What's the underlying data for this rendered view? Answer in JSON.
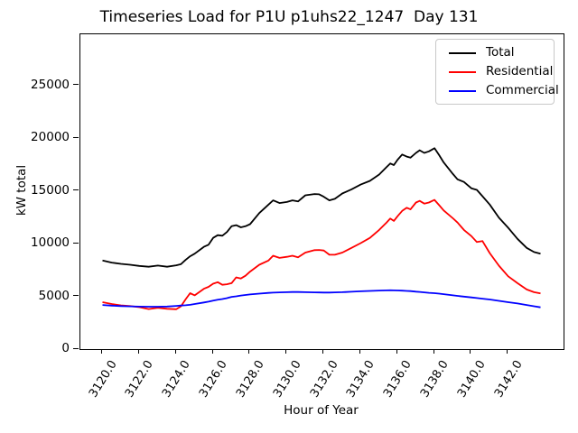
{
  "title": "Timeseries Load for P1U p1uhs22_1247  Day 131",
  "chart_data": {
    "type": "line",
    "title": "Timeseries Load for P1U p1uhs22_1247  Day 131",
    "xlabel": "Hour of Year",
    "ylabel": "kW total",
    "xlim": [
      3118.8,
      3145.0
    ],
    "ylim": [
      0,
      29850
    ],
    "grid": false,
    "legend_position": "upper right",
    "xticks": {
      "values": [
        3120,
        3122,
        3124,
        3126,
        3128,
        3130,
        3132,
        3134,
        3136,
        3138,
        3140,
        3142
      ],
      "labels": [
        "3120.0",
        "3122.0",
        "3124.0",
        "3126.0",
        "3128.0",
        "3130.0",
        "3132.0",
        "3134.0",
        "3136.0",
        "3138.0",
        "3140.0",
        "3142.0"
      ]
    },
    "yticks": {
      "values": [
        0,
        5000,
        10000,
        15000,
        20000,
        25000
      ],
      "labels": [
        "0",
        "5000",
        "10000",
        "15000",
        "20000",
        "25000"
      ]
    },
    "x": [
      3120,
      3120.5,
      3121,
      3121.5,
      3122,
      3122.5,
      3123,
      3123.5,
      3124,
      3124.25,
      3124.5,
      3124.75,
      3125,
      3125.5,
      3125.75,
      3126,
      3126.25,
      3126.5,
      3126.75,
      3127,
      3127.25,
      3127.5,
      3127.75,
      3128,
      3128.5,
      3129,
      3129.25,
      3129.6,
      3130,
      3130.3,
      3130.6,
      3131,
      3131.5,
      3131.75,
      3132,
      3132.3,
      3132.6,
      3133,
      3133.5,
      3134,
      3134.5,
      3135,
      3135.4,
      3135.6,
      3135.8,
      3136,
      3136.25,
      3136.5,
      3136.7,
      3137,
      3137.2,
      3137.45,
      3137.7,
      3138,
      3138.25,
      3138.5,
      3139,
      3139.25,
      3139.6,
      3140,
      3140.3,
      3140.6,
      3141,
      3141.5,
      3142,
      3142.5,
      3143,
      3143.4,
      3143.75
    ],
    "series": [
      {
        "name": "Total",
        "color": "#000000",
        "values": [
          8400,
          8200,
          8080,
          8000,
          7890,
          7810,
          7920,
          7810,
          7950,
          8050,
          8450,
          8800,
          9050,
          9700,
          9900,
          10550,
          10800,
          10750,
          11100,
          11650,
          11750,
          11550,
          11650,
          11850,
          12900,
          13700,
          14100,
          13850,
          13950,
          14100,
          14000,
          14580,
          14700,
          14680,
          14450,
          14100,
          14250,
          14750,
          15150,
          15600,
          15950,
          16550,
          17250,
          17600,
          17450,
          17950,
          18450,
          18250,
          18150,
          18600,
          18850,
          18600,
          18750,
          19050,
          18400,
          17700,
          16600,
          16100,
          15850,
          15250,
          15100,
          14500,
          13700,
          12450,
          11500,
          10450,
          9600,
          9200,
          9050
        ]
      },
      {
        "name": "Residential",
        "color": "#ff0000",
        "values": [
          4450,
          4280,
          4150,
          4080,
          3980,
          3800,
          3920,
          3820,
          3780,
          4050,
          4700,
          5300,
          5100,
          5720,
          5900,
          6200,
          6350,
          6100,
          6150,
          6250,
          6800,
          6700,
          6950,
          7350,
          8000,
          8400,
          8850,
          8650,
          8750,
          8850,
          8700,
          9150,
          9380,
          9400,
          9350,
          8950,
          8950,
          9150,
          9600,
          10050,
          10550,
          11300,
          12000,
          12380,
          12150,
          12600,
          13100,
          13400,
          13250,
          13900,
          14050,
          13800,
          13900,
          14150,
          13650,
          13150,
          12400,
          12000,
          11300,
          10720,
          10150,
          10250,
          9100,
          7900,
          6900,
          6250,
          5650,
          5400,
          5280
        ]
      },
      {
        "name": "Commercial",
        "color": "#0000ff",
        "values": [
          4180,
          4120,
          4080,
          4050,
          4030,
          4020,
          4020,
          4040,
          4100,
          4130,
          4160,
          4200,
          4280,
          4420,
          4500,
          4600,
          4680,
          4750,
          4830,
          4950,
          5000,
          5080,
          5130,
          5180,
          5260,
          5330,
          5350,
          5380,
          5400,
          5410,
          5410,
          5400,
          5380,
          5370,
          5360,
          5360,
          5380,
          5400,
          5440,
          5480,
          5520,
          5550,
          5570,
          5575,
          5570,
          5560,
          5545,
          5520,
          5500,
          5450,
          5420,
          5380,
          5340,
          5300,
          5260,
          5210,
          5100,
          5050,
          4980,
          4900,
          4840,
          4780,
          4700,
          4580,
          4450,
          4330,
          4180,
          4060,
          3960
        ]
      }
    ]
  }
}
